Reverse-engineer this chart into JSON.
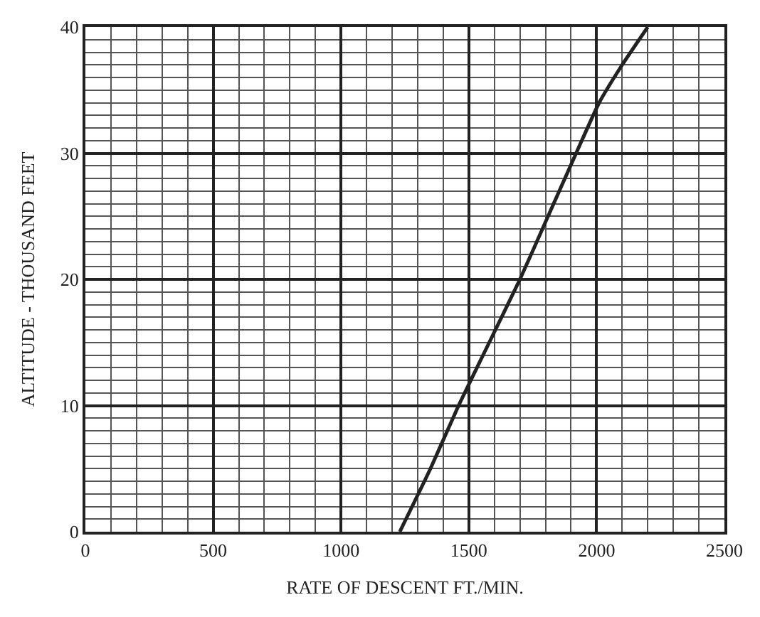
{
  "chart_data": {
    "type": "line",
    "xlabel": "RATE OF DESCENT FT./MIN.",
    "ylabel": "ALTITUDE - THOUSAND FEET",
    "series": [
      {
        "color": "#222222",
        "x": [
          1230,
          1350,
          1460,
          1580,
          1700,
          1810,
          1920,
          2010,
          2100,
          2200
        ],
        "values": [
          0,
          5,
          10,
          15,
          20,
          25,
          30,
          34,
          37,
          40
        ]
      }
    ],
    "xlim": [
      0,
      2500
    ],
    "ylim": [
      0,
      40
    ],
    "xticks": [
      0,
      500,
      1000,
      1500,
      2000,
      2500
    ],
    "yticks": [
      0,
      10,
      20,
      30,
      40
    ],
    "grid": true,
    "legend": false
  }
}
